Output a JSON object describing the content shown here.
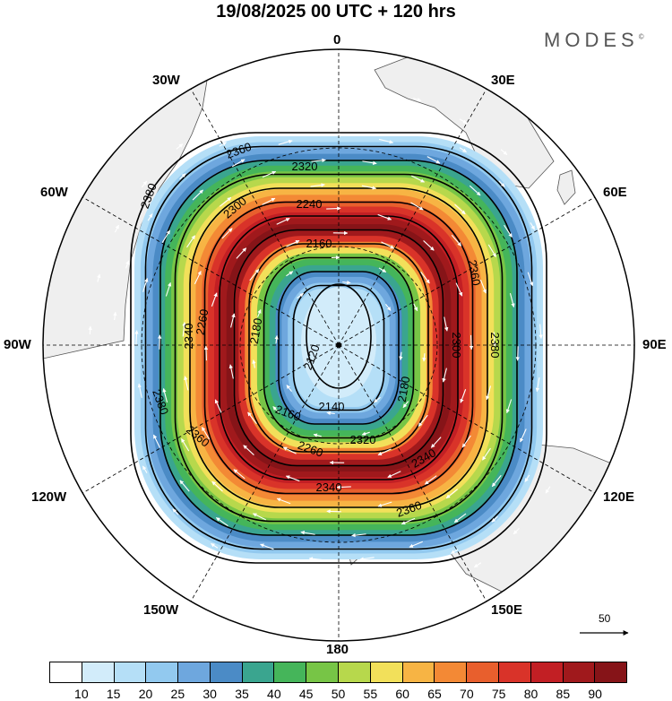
{
  "title": "19/08/2025  00 UTC  + 120 hrs",
  "brand": "MODES",
  "brand_mark": "©",
  "longitude_labels": {
    "deg0": "0",
    "deg30e": "30E",
    "deg60e": "60E",
    "deg90e": "90E",
    "deg120e": "120E",
    "deg150e": "150E",
    "deg180": "180",
    "deg150w": "150W",
    "deg120w": "120W",
    "deg90w": "90W",
    "deg60w": "60W",
    "deg30w": "30W"
  },
  "contour_labels": [
    "2120",
    "2140",
    "2160",
    "2180",
    "2240",
    "2260",
    "2300",
    "2320",
    "2340",
    "2360",
    "2380"
  ],
  "vector_reference": "50",
  "colorbar": {
    "ticks": [
      "10",
      "15",
      "20",
      "25",
      "30",
      "35",
      "40",
      "45",
      "50",
      "55",
      "60",
      "65",
      "70",
      "75",
      "80",
      "85",
      "90"
    ],
    "colors": [
      "#ffffff",
      "#d2ecfa",
      "#b5dff7",
      "#92c9ef",
      "#6ea7de",
      "#4b8bc6",
      "#3aa58f",
      "#45b55a",
      "#77c546",
      "#b7d84c",
      "#f2e05a",
      "#f7b444",
      "#f38935",
      "#e85f2d",
      "#d93329",
      "#c21f24",
      "#a0191c",
      "#861418"
    ]
  },
  "map_colors": {
    "land": "#efefef",
    "coast": "#555555",
    "grid": "#000000"
  }
}
